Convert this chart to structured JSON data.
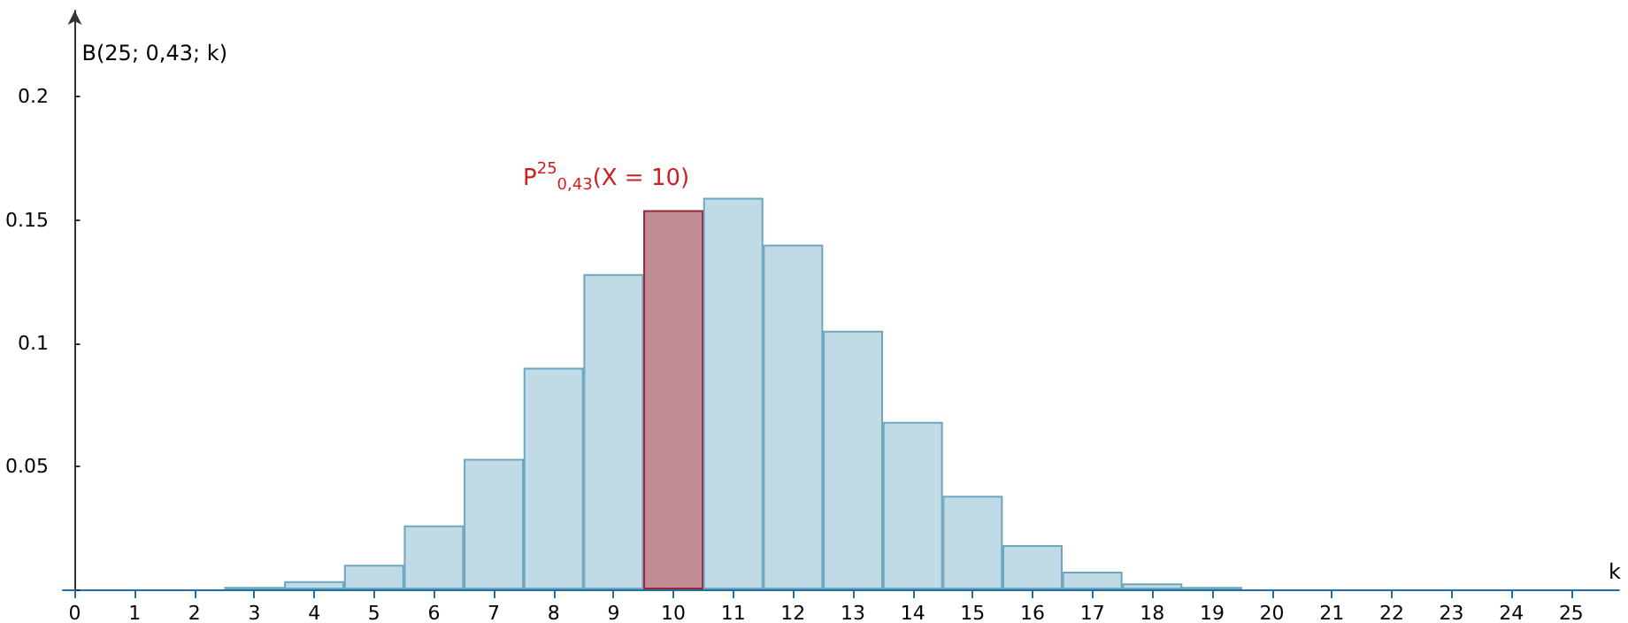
{
  "chart_data": {
    "type": "bar",
    "xlabel": "k",
    "ylabel": "B(25; 0,43; k)",
    "x": [
      0,
      1,
      2,
      3,
      4,
      5,
      6,
      7,
      8,
      9,
      10,
      11,
      12,
      13,
      14,
      15,
      16,
      17,
      18,
      19,
      20,
      21,
      22,
      23,
      24,
      25
    ],
    "xlim": [
      -0.2,
      25.8
    ],
    "xticks": [
      0,
      1,
      2,
      3,
      4,
      5,
      6,
      7,
      8,
      9,
      10,
      11,
      12,
      13,
      14,
      15,
      16,
      17,
      18,
      19,
      20,
      21,
      22,
      23,
      24,
      25
    ],
    "values": [
      0,
      0,
      0,
      0.001,
      0.0033,
      0.01,
      0.026,
      0.053,
      0.09,
      0.128,
      0.154,
      0.159,
      0.14,
      0.105,
      0.068,
      0.038,
      0.018,
      0.0072,
      0.0024,
      0.001,
      0,
      0,
      0,
      0,
      0,
      0
    ],
    "colors": [
      "#c1dbe6",
      "#c1dbe6",
      "#c1dbe6",
      "#c1dbe6",
      "#c1dbe6",
      "#c1dbe6",
      "#c1dbe6",
      "#c1dbe6",
      "#c1dbe6",
      "#c1dbe6",
      "#c18c94",
      "#c1dbe6",
      "#c1dbe6",
      "#c1dbe6",
      "#c1dbe6",
      "#c1dbe6",
      "#c1dbe6",
      "#c1dbe6",
      "#c1dbe6",
      "#c1dbe6",
      "#c1dbe6",
      "#c1dbe6",
      "#c1dbe6",
      "#c1dbe6",
      "#c1dbe6",
      "#c1dbe6"
    ],
    "ylim": [
      0,
      0.235
    ],
    "yticks": [
      {
        "value": 0,
        "label": null
      },
      0.05,
      0.1,
      0.15,
      0.2
    ],
    "annotations": [
      {
        "text": "P$^{25}$$_{0,43}$(X = 10)",
        "x": 10,
        "y": 0.154
      }
    ],
    "grid": false
  }
}
